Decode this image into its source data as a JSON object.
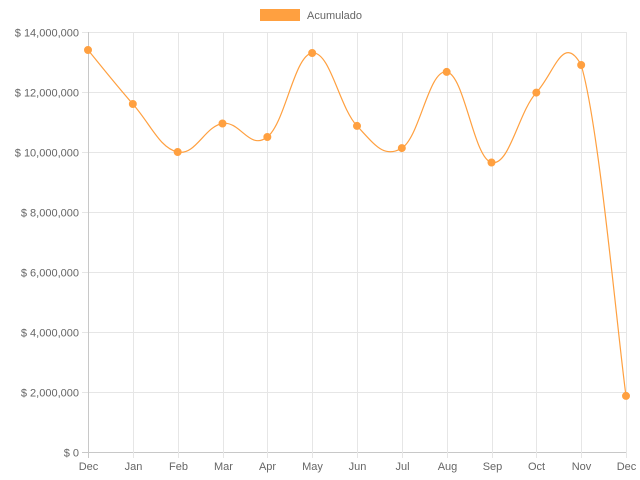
{
  "chart_data": {
    "type": "line",
    "categories": [
      "Dec",
      "Jan",
      "Feb",
      "Mar",
      "Apr",
      "May",
      "Jun",
      "Jul",
      "Aug",
      "Sep",
      "Oct",
      "Nov",
      "Dec"
    ],
    "series": [
      {
        "name": "Acumulado",
        "color": "#ffa040",
        "values": [
          13400000,
          11600000,
          10000000,
          10950000,
          10500000,
          13300000,
          10870000,
          10130000,
          12670000,
          9650000,
          11980000,
          12900000,
          1870000
        ]
      }
    ],
    "y_ticks": [
      "$ 0",
      "$ 2,000,000",
      "$ 4,000,000",
      "$ 6,000,000",
      "$ 8,000,000",
      "$ 10,000,000",
      "$ 12,000,000",
      "$ 14,000,000"
    ],
    "ylim": [
      0,
      14000000
    ],
    "grid": true,
    "legend_position": "top",
    "title": "",
    "xlabel": "",
    "ylabel": ""
  }
}
